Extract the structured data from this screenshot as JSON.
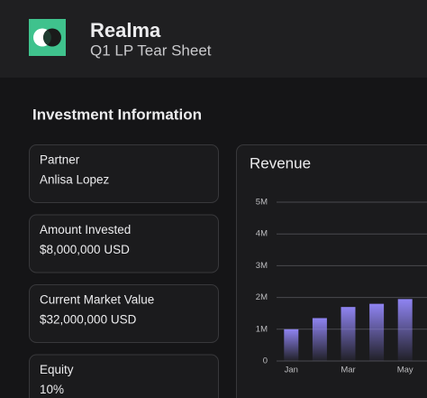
{
  "header": {
    "title": "Realma",
    "subtitle": "Q1 LP Tear Sheet"
  },
  "investment_information": {
    "title": "Investment Information",
    "fields": [
      {
        "label": "Partner",
        "value": "Anlisa Lopez"
      },
      {
        "label": "Amount Invested",
        "value": "$8,000,000 USD"
      },
      {
        "label": "Current Market Value",
        "value": "$32,000,000 USD"
      },
      {
        "label": "Equity",
        "value": "10%"
      }
    ]
  },
  "chart_data": {
    "type": "bar",
    "title": "Revenue",
    "categories": [
      "Jan",
      null,
      "Mar",
      null,
      "May"
    ],
    "values": [
      1000000,
      1350000,
      1700000,
      1800000,
      1950000
    ],
    "color": "#8f84f2",
    "ylim": [
      0,
      5000000
    ],
    "yticks": [
      0,
      {
        "value": 1000000,
        "label": "1M"
      },
      {
        "value": 2000000,
        "label": "2M"
      },
      {
        "value": 3000000,
        "label": "3M"
      },
      {
        "value": 4000000,
        "label": "4M"
      },
      {
        "value": 5000000,
        "label": "5M"
      }
    ],
    "grid": true
  }
}
